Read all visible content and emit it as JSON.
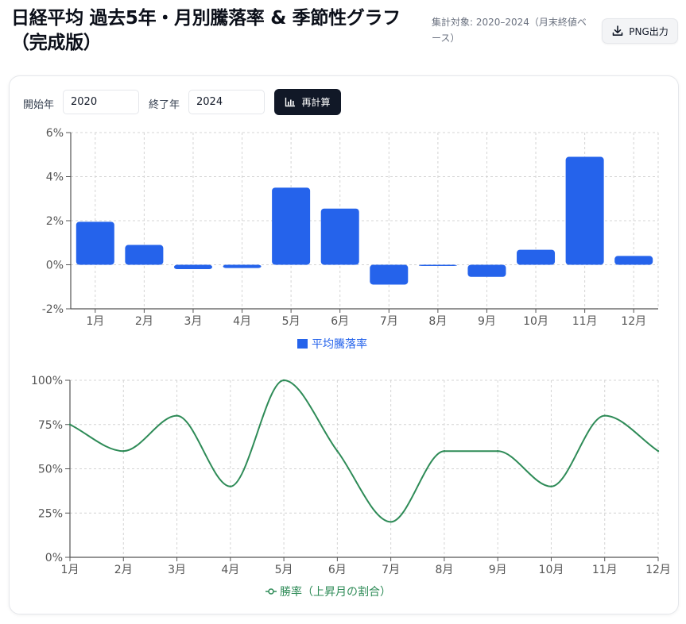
{
  "header": {
    "title": "日経平均 過去5年・月別騰落率 & 季節性グラフ（完成版）",
    "meta": "集計対象: 2020–2024（月末終値ベース）",
    "png_button": "PNG出力"
  },
  "controls": {
    "start_label": "開始年",
    "start_value": "2020",
    "end_label": "終了年",
    "end_value": "2024",
    "recalc_label": "再計算"
  },
  "colors": {
    "bar": "#2563eb",
    "line": "#2e8b57",
    "grid": "#d4d4d4",
    "axis": "#555555"
  },
  "chart_data": [
    {
      "type": "bar",
      "categories": [
        "1月",
        "2月",
        "3月",
        "4月",
        "5月",
        "6月",
        "7月",
        "8月",
        "9月",
        "10月",
        "11月",
        "12月"
      ],
      "series": [
        {
          "name": "平均騰落率",
          "values": [
            1.95,
            0.9,
            -0.2,
            -0.15,
            3.5,
            2.55,
            -0.9,
            -0.05,
            -0.55,
            0.68,
            4.9,
            0.4
          ]
        }
      ],
      "ylim": [
        -2,
        6
      ],
      "yticks": [
        "-2%",
        "0%",
        "2%",
        "4%",
        "6%"
      ],
      "ytick_values": [
        -2,
        0,
        2,
        4,
        6
      ],
      "grid": true,
      "legend": "bottom"
    },
    {
      "type": "line",
      "categories": [
        "1月",
        "2月",
        "3月",
        "4月",
        "5月",
        "6月",
        "7月",
        "8月",
        "9月",
        "10月",
        "11月",
        "12月"
      ],
      "series": [
        {
          "name": "勝率（上昇月の割合）",
          "values": [
            75,
            60,
            80,
            40,
            100,
            60,
            20,
            60,
            60,
            40,
            80,
            60
          ]
        }
      ],
      "ylim": [
        0,
        100
      ],
      "yticks": [
        "0%",
        "25%",
        "50%",
        "75%",
        "100%"
      ],
      "ytick_values": [
        0,
        25,
        50,
        75,
        100
      ],
      "grid": true,
      "legend": "bottom"
    }
  ]
}
